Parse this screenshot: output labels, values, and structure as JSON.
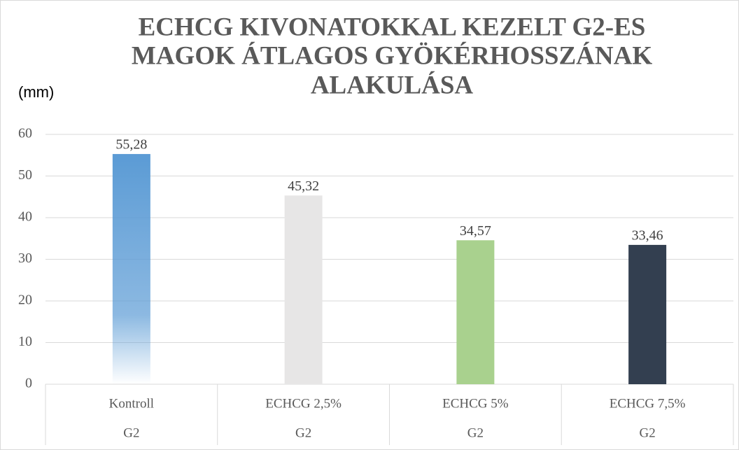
{
  "chart_data": {
    "type": "bar",
    "title": [
      "ECHCG KIVONATOKKAL KEZELT G2-ES",
      "MAGOK ÁTLAGOS GYÖKÉRHOSSZÁNAK",
      "ALAKULÁSA"
    ],
    "y_label": "(mm)",
    "categories": [
      "Kontroll",
      "ECHCG 2,5%",
      "ECHCG 5%",
      "ECHCG 7,5%"
    ],
    "groups": [
      "G2",
      "G2",
      "G2",
      "G2"
    ],
    "values": [
      55.28,
      45.32,
      34.57,
      33.46
    ],
    "value_labels": [
      "55,28",
      "45,32",
      "34,57",
      "33,46"
    ],
    "colors": [
      "#5b9bd5",
      "#e7e6e6",
      "#a9d18e",
      "#333f50"
    ],
    "fill_gradient": [
      true,
      false,
      false,
      false
    ],
    "ylim": [
      0,
      60
    ],
    "yticks": [
      0,
      10,
      20,
      30,
      40,
      50,
      60
    ],
    "grid": true
  }
}
